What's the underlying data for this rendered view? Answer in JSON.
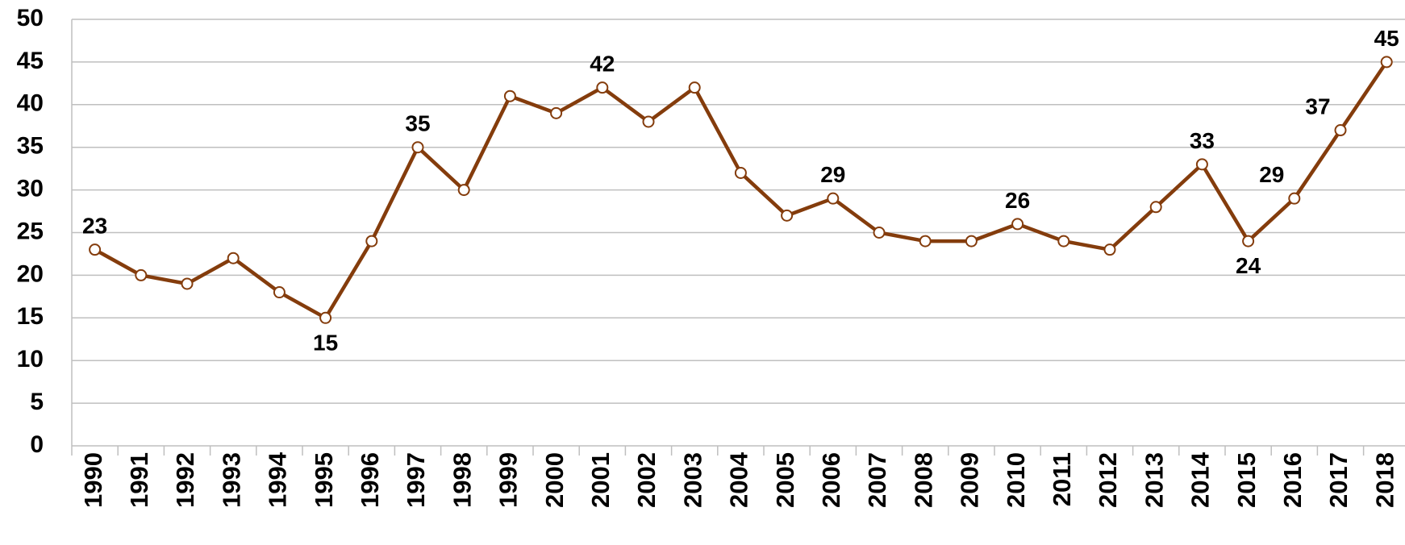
{
  "chart_data": {
    "type": "line",
    "categories": [
      "1990",
      "1991",
      "1992",
      "1993",
      "1994",
      "1995",
      "1996",
      "1997",
      "1998",
      "1999",
      "2000",
      "2001",
      "2002",
      "2003",
      "2004",
      "2005",
      "2006",
      "2007",
      "2008",
      "2009",
      "2010",
      "2011",
      "2012",
      "2013",
      "2014",
      "2015",
      "2016",
      "2017",
      "2018"
    ],
    "series": [
      {
        "name": null,
        "color": "#843c0c",
        "values": [
          23,
          20,
          19,
          22,
          18,
          15,
          24,
          35,
          30,
          41,
          39,
          42,
          38,
          42,
          32,
          27,
          29,
          25,
          24,
          24,
          26,
          24,
          23,
          28,
          33,
          24,
          29,
          37,
          45
        ],
        "value_labels": [
          "23",
          null,
          null,
          null,
          null,
          "15",
          null,
          "35",
          null,
          null,
          null,
          "42",
          null,
          null,
          null,
          null,
          "29",
          null,
          null,
          null,
          "26",
          null,
          null,
          null,
          "33",
          "24",
          "29",
          "37",
          "45"
        ]
      }
    ],
    "ylim": [
      0,
      50
    ],
    "yticks": [
      0,
      5,
      10,
      15,
      20,
      25,
      30,
      35,
      40,
      45,
      50
    ],
    "grid": true
  }
}
